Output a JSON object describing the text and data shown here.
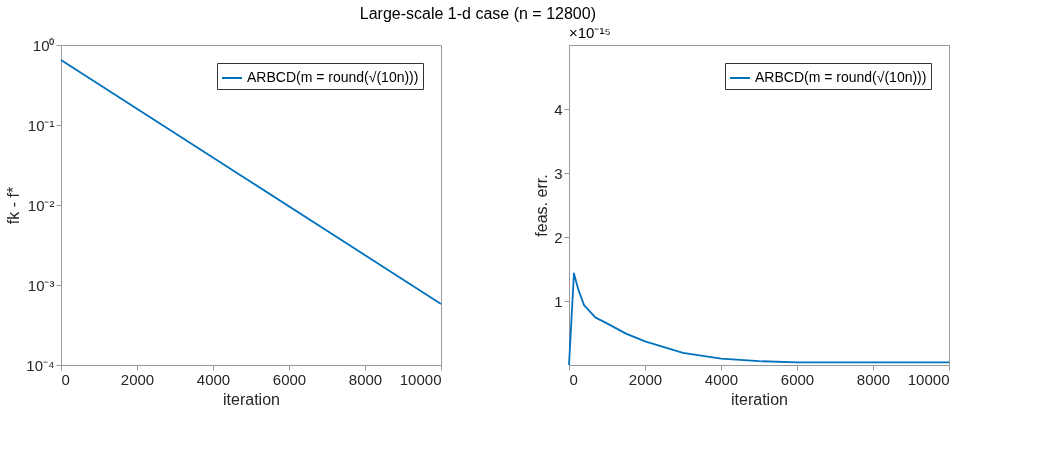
{
  "chart_data": [
    {
      "type": "line",
      "title": "Large-scale 1-d case (n = 12800)",
      "xlabel": "iteration",
      "ylabel": "fk - f*",
      "log": "y",
      "grid": false,
      "legend": "top right",
      "x": [
        0,
        5000,
        10000
      ],
      "xlim": [
        0,
        10000
      ],
      "xticks": [
        0,
        2000,
        4000,
        6000,
        8000,
        10000
      ],
      "ylim": [
        0.0001,
        1
      ],
      "yticks": [
        {
          "value": 0.0001,
          "label": "10⁻⁴"
        },
        {
          "value": 0.001,
          "label": "10⁻³"
        },
        {
          "value": 0.01,
          "label": "10⁻²"
        },
        {
          "value": 0.1,
          "label": "10⁻¹"
        },
        {
          "value": 1,
          "label": "10⁰"
        }
      ],
      "series": [
        {
          "name": "ARBCD(m = round(√(10n)))",
          "color": "#0072bd",
          "values": [
            0.65,
            0.0194,
            0.00058
          ]
        }
      ]
    },
    {
      "type": "line",
      "xlabel": "iteration",
      "ylabel": "feas. err.",
      "grid": false,
      "legend": "top right",
      "annotations": [
        "×10⁻¹⁵"
      ],
      "x": [
        0,
        130,
        250,
        400,
        700,
        1000,
        1500,
        2000,
        2500,
        3000,
        4000,
        5000,
        6000,
        8000,
        10000
      ],
      "xlim": [
        0,
        10000
      ],
      "xticks": [
        0,
        2000,
        4000,
        6000,
        8000,
        10000
      ],
      "ylim": [
        0,
        5
      ],
      "yticks": [
        1,
        2,
        3,
        4
      ],
      "series": [
        {
          "name": "ARBCD(m = round(√(10n)))",
          "color": "#0072bd",
          "values": [
            0,
            1.43,
            1.17,
            0.93,
            0.74,
            0.65,
            0.49,
            0.37,
            0.28,
            0.19,
            0.1,
            0.06,
            0.04,
            0.04,
            0.04
          ]
        }
      ]
    }
  ]
}
